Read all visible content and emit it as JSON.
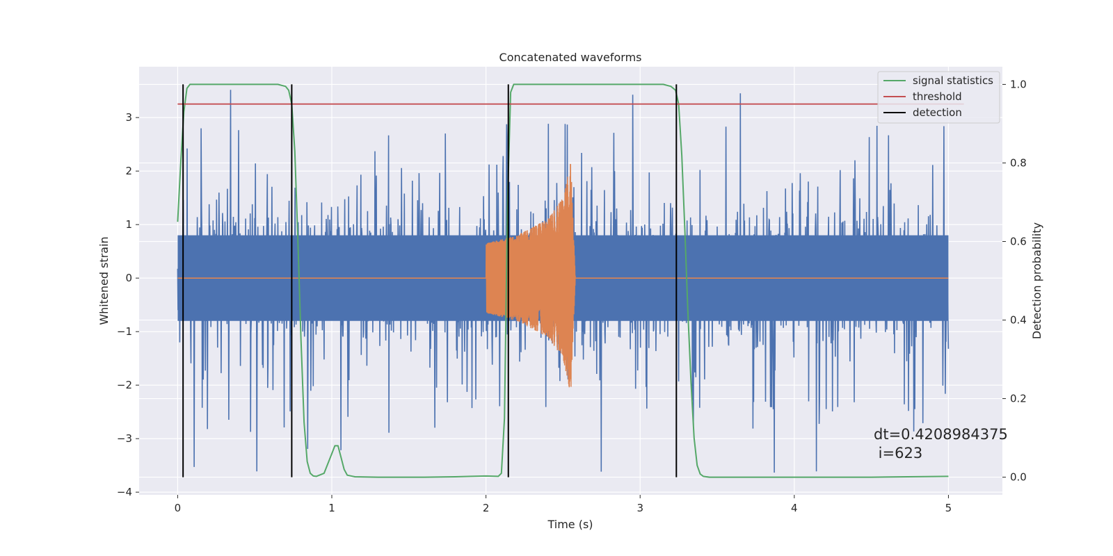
{
  "chart_data": {
    "type": "line",
    "title": "Concatenated waveforms",
    "xlabel": "Time (s)",
    "ylabel": "Whitened strain",
    "ylabel_right": "Detection probability",
    "xlim": [
      -0.25,
      5.35
    ],
    "ylim": [
      -4.05,
      3.95
    ],
    "ylim_right": [
      -0.045,
      1.045
    ],
    "xticks": [
      0,
      1,
      2,
      3,
      4,
      5
    ],
    "yticks": [
      -4,
      -3,
      -2,
      -1,
      0,
      1,
      2,
      3
    ],
    "yticks_right": [
      0.0,
      0.2,
      0.4,
      0.6,
      0.8,
      1.0
    ],
    "xtick_labels": [
      "0",
      "1",
      "2",
      "3",
      "4",
      "5"
    ],
    "ytick_labels": [
      "−4",
      "−3",
      "−2",
      "−1",
      "0",
      "1",
      "2",
      "3"
    ],
    "ytick_labels_right": [
      "0.0",
      "0.2",
      "0.4",
      "0.6",
      "0.8",
      "1.0"
    ],
    "grid": true,
    "legend_position": "top-right",
    "legend": [
      {
        "name": "signal statistics",
        "color": "#55a868"
      },
      {
        "name": "threshold",
        "color": "#c44e52"
      },
      {
        "name": "detection",
        "color": "#000000"
      }
    ],
    "annotations": [
      "dt=0.4208984375",
      " i=623"
    ],
    "annotation_position": [
      4.5,
      -3.35
    ],
    "series": [
      {
        "name": "",
        "axis": "left",
        "color": "#4c72b0",
        "kind": "noise",
        "x_range": [
          0,
          5
        ],
        "typical_range": [
          -0.8,
          0.8
        ],
        "extreme_range": [
          -3.75,
          3.6
        ]
      },
      {
        "name": "",
        "axis": "left",
        "color": "#dd8452",
        "kind": "chirp",
        "x_range": [
          2.0,
          2.58
        ],
        "envelope": [
          [
            2.0,
            0.65
          ],
          [
            2.2,
            0.8
          ],
          [
            2.4,
            1.1
          ],
          [
            2.5,
            1.5
          ],
          [
            2.55,
            2.2
          ],
          [
            2.58,
            0.0
          ]
        ],
        "baseline": 0
      },
      {
        "name": "signal statistics",
        "axis": "right",
        "color": "#55a868",
        "x": [
          0.0,
          0.02,
          0.04,
          0.06,
          0.08,
          0.1,
          0.15,
          0.3,
          0.5,
          0.65,
          0.7,
          0.72,
          0.74,
          0.76,
          0.78,
          0.8,
          0.82,
          0.84,
          0.86,
          0.88,
          0.9,
          0.95,
          1.0,
          1.02,
          1.04,
          1.06,
          1.08,
          1.1,
          1.15,
          1.3,
          1.6,
          1.8,
          1.9,
          2.0,
          2.08,
          2.1,
          2.12,
          2.14,
          2.16,
          2.18,
          2.2,
          2.3,
          2.6,
          3.0,
          3.15,
          3.2,
          3.23,
          3.25,
          3.27,
          3.29,
          3.31,
          3.33,
          3.35,
          3.37,
          3.39,
          3.41,
          3.45,
          3.6,
          4.0,
          4.5,
          5.0
        ],
        "y": [
          0.65,
          0.8,
          0.93,
          0.99,
          1.0,
          1.0,
          1.0,
          1.0,
          1.0,
          1.0,
          0.995,
          0.985,
          0.95,
          0.83,
          0.6,
          0.35,
          0.14,
          0.04,
          0.01,
          0.003,
          0.002,
          0.01,
          0.06,
          0.08,
          0.08,
          0.05,
          0.02,
          0.005,
          0.001,
          0.0,
          0.0,
          0.001,
          0.002,
          0.003,
          0.002,
          0.01,
          0.15,
          0.7,
          0.98,
          1.0,
          1.0,
          1.0,
          1.0,
          1.0,
          1.0,
          0.995,
          0.985,
          0.95,
          0.82,
          0.63,
          0.42,
          0.24,
          0.1,
          0.03,
          0.008,
          0.002,
          0.0,
          0.0,
          0.0,
          0.0,
          0.002
        ]
      },
      {
        "name": "threshold",
        "axis": "right",
        "color": "#c44e52",
        "x": [
          0,
          5.1
        ],
        "y": [
          0.95,
          0.95
        ]
      },
      {
        "name": "detection",
        "axis": "right",
        "color": "#000000",
        "type": "vlines",
        "x": [
          0.035,
          0.74,
          2.145,
          3.235
        ],
        "ymin": 0.0,
        "ymax": 1.0
      }
    ]
  }
}
